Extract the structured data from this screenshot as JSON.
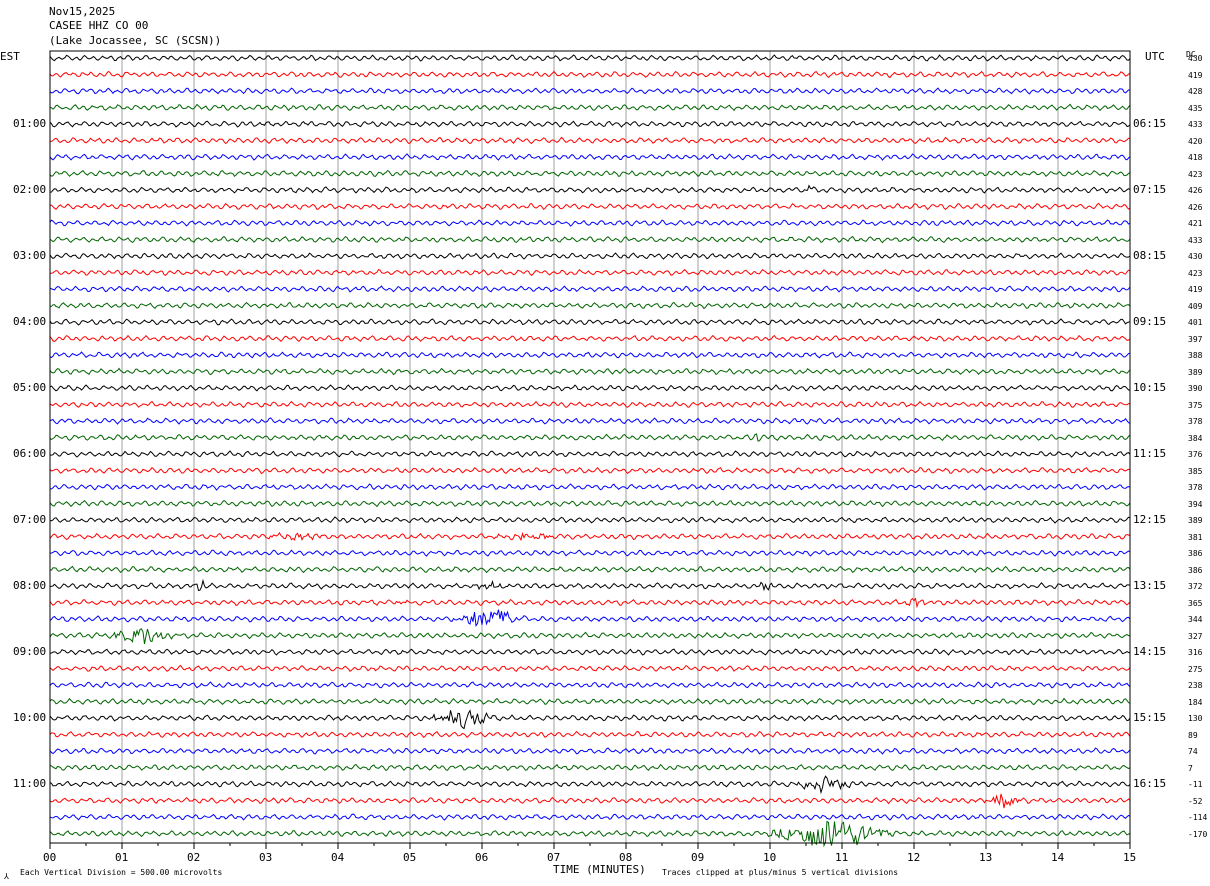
{
  "header": {
    "date": "Nov15,2025",
    "station": "CASEE HHZ CO 00",
    "location": "(Lake Jocassee, SC (SCSN))"
  },
  "left_tz": "EST",
  "right_tz": "UTC",
  "dc_label": "DC",
  "footer": {
    "xlabel": "TIME (MINUTES)",
    "scale_note": "Each Vertical Division =  500.00 microvolts",
    "clip_note": "Traces clipped at plus/minus 5 vertical divisions"
  },
  "colors": {
    "trace_cycle": [
      "#000000",
      "#ff0000",
      "#0000ff",
      "#006400"
    ],
    "grid": "#a0a0a0"
  },
  "chart_data": {
    "type": "line",
    "title": "CASEE HHZ CO 00",
    "xlabel": "TIME (MINUTES)",
    "xlim": [
      0,
      15
    ],
    "x_ticks": [
      "00",
      "01",
      "02",
      "03",
      "04",
      "05",
      "06",
      "07",
      "08",
      "09",
      "10",
      "11",
      "12",
      "13",
      "14",
      "15"
    ],
    "rows_per_hour": 4,
    "row_count": 48,
    "left_hour_labels": [
      "01:00",
      "02:00",
      "03:00",
      "04:00",
      "05:00",
      "06:00",
      "07:00",
      "08:00",
      "09:00",
      "10:00",
      "11:00"
    ],
    "right_hour_labels": [
      "06:15",
      "07:15",
      "08:15",
      "09:15",
      "10:15",
      "11:15",
      "12:15",
      "13:15",
      "14:15",
      "15:15",
      "16:15"
    ],
    "dc_offsets": [
      430,
      419,
      428,
      435,
      433,
      420,
      418,
      423,
      426,
      426,
      421,
      433,
      430,
      423,
      419,
      409,
      401,
      397,
      388,
      389,
      390,
      375,
      378,
      384,
      376,
      385,
      378,
      394,
      389,
      381,
      386,
      386,
      372,
      365,
      344,
      327,
      316,
      275,
      238,
      184,
      130,
      89,
      74,
      7,
      -11,
      -52,
      -114,
      -170
    ],
    "events": [
      {
        "row": 8,
        "minute": 10.55,
        "amplitude": 1.4,
        "duration": 0.08
      },
      {
        "row": 23,
        "minute": 9.8,
        "amplitude": 1.0,
        "duration": 0.1
      },
      {
        "row": 29,
        "minute": 3.4,
        "amplitude": 0.9,
        "duration": 0.5
      },
      {
        "row": 29,
        "minute": 6.6,
        "amplitude": 0.8,
        "duration": 0.6
      },
      {
        "row": 32,
        "minute": 2.1,
        "amplitude": 1.6,
        "duration": 0.1
      },
      {
        "row": 32,
        "minute": 9.95,
        "amplitude": 1.5,
        "duration": 0.1
      },
      {
        "row": 32,
        "minute": 6.1,
        "amplitude": 0.7,
        "duration": 0.4
      },
      {
        "row": 33,
        "minute": 4.9,
        "amplitude": 1.2,
        "duration": 0.1
      },
      {
        "row": 33,
        "minute": 12.05,
        "amplitude": 1.0,
        "duration": 0.2
      },
      {
        "row": 34,
        "minute": 6.1,
        "amplitude": 2.8,
        "duration": 0.55
      },
      {
        "row": 35,
        "minute": 1.3,
        "amplitude": 2.2,
        "duration": 0.55
      },
      {
        "row": 40,
        "minute": 5.75,
        "amplitude": 2.2,
        "duration": 0.5
      },
      {
        "row": 44,
        "minute": 10.75,
        "amplitude": 2.0,
        "duration": 0.45
      },
      {
        "row": 45,
        "minute": 13.25,
        "amplitude": 2.0,
        "duration": 0.3
      },
      {
        "row": 47,
        "minute": 10.85,
        "amplitude": 4.5,
        "duration": 0.9
      }
    ]
  }
}
